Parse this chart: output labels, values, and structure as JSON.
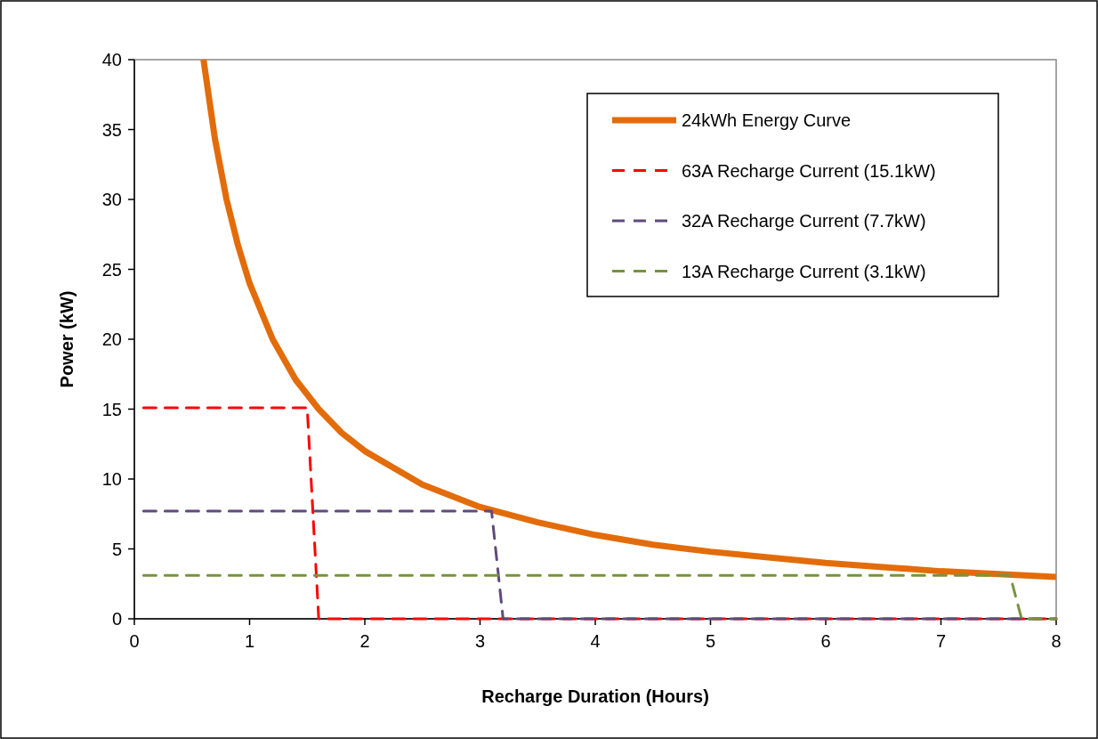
{
  "chart_data": {
    "type": "line",
    "xlabel": "Recharge Duration  (Hours)",
    "ylabel": "Power (kW)",
    "xlim": [
      0,
      8
    ],
    "ylim": [
      0,
      40
    ],
    "xticks": [
      0,
      1,
      2,
      3,
      4,
      5,
      6,
      7,
      8
    ],
    "yticks": [
      0,
      5,
      10,
      15,
      20,
      25,
      30,
      35,
      40
    ],
    "legend": "top right",
    "grid": false,
    "series": [
      {
        "name": "24kWh Energy Curve",
        "color": "#e36c0a",
        "line_style": "solid",
        "x": [
          0.6,
          0.7,
          0.8,
          0.9,
          1,
          1.2,
          1.4,
          1.6,
          1.8,
          2,
          2.5,
          3,
          3.5,
          4,
          4.5,
          5,
          5.5,
          6,
          6.5,
          7,
          7.5,
          8
        ],
        "values": [
          40,
          34.3,
          30,
          26.7,
          24,
          20,
          17.1,
          15,
          13.3,
          12,
          9.6,
          8,
          6.9,
          6,
          5.3,
          4.8,
          4.4,
          4,
          3.7,
          3.4,
          3.2,
          3
        ]
      },
      {
        "name": "63A Recharge Current (15.1kW)",
        "color": "#ff0000",
        "line_style": "dashed",
        "x": [
          0.08,
          1.5,
          1.6,
          8
        ],
        "values": [
          15.1,
          15.1,
          0,
          0
        ]
      },
      {
        "name": "32A Recharge Current (7.7kW)",
        "color": "#604a7b",
        "line_style": "dashed",
        "x": [
          0.08,
          3.1,
          3.2,
          8
        ],
        "values": [
          7.7,
          7.7,
          0,
          0
        ]
      },
      {
        "name": "13A Recharge Current (3.1kW)",
        "color": "#77933c",
        "line_style": "dashed",
        "x": [
          0.08,
          7.6,
          7.7,
          8
        ],
        "values": [
          3.1,
          3.1,
          0,
          0
        ]
      }
    ]
  }
}
